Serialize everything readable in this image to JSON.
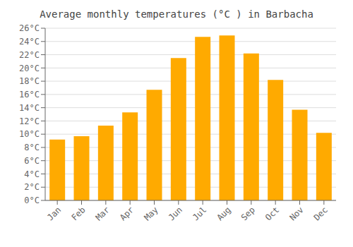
{
  "chart_data": {
    "type": "bar",
    "title": "Average monthly temperatures (°C ) in Barbacha",
    "categories": [
      "Jan",
      "Feb",
      "Mar",
      "Apr",
      "May",
      "Jun",
      "Jul",
      "Aug",
      "Sep",
      "Oct",
      "Nov",
      "Dec"
    ],
    "values": [
      9.2,
      9.7,
      11.3,
      13.3,
      16.7,
      21.5,
      24.7,
      24.9,
      22.2,
      18.2,
      13.7,
      10.2
    ],
    "color": "#FFAA00",
    "ylim": [
      0,
      26
    ],
    "yticks": [
      {
        "value": 0,
        "label": "0°C"
      },
      {
        "value": 2,
        "label": "2°C"
      },
      {
        "value": 4,
        "label": "4°C"
      },
      {
        "value": 6,
        "label": "6°C"
      },
      {
        "value": 8,
        "label": "8°C"
      },
      {
        "value": 10,
        "label": "10°C"
      },
      {
        "value": 12,
        "label": "12°C"
      },
      {
        "value": 14,
        "label": "14°C"
      },
      {
        "value": 16,
        "label": "16°C"
      },
      {
        "value": 18,
        "label": "18°C"
      },
      {
        "value": 20,
        "label": "20°C"
      },
      {
        "value": 22,
        "label": "22°C"
      },
      {
        "value": 24,
        "label": "24°C"
      },
      {
        "value": 26,
        "label": "26°C"
      }
    ],
    "grid": true
  }
}
